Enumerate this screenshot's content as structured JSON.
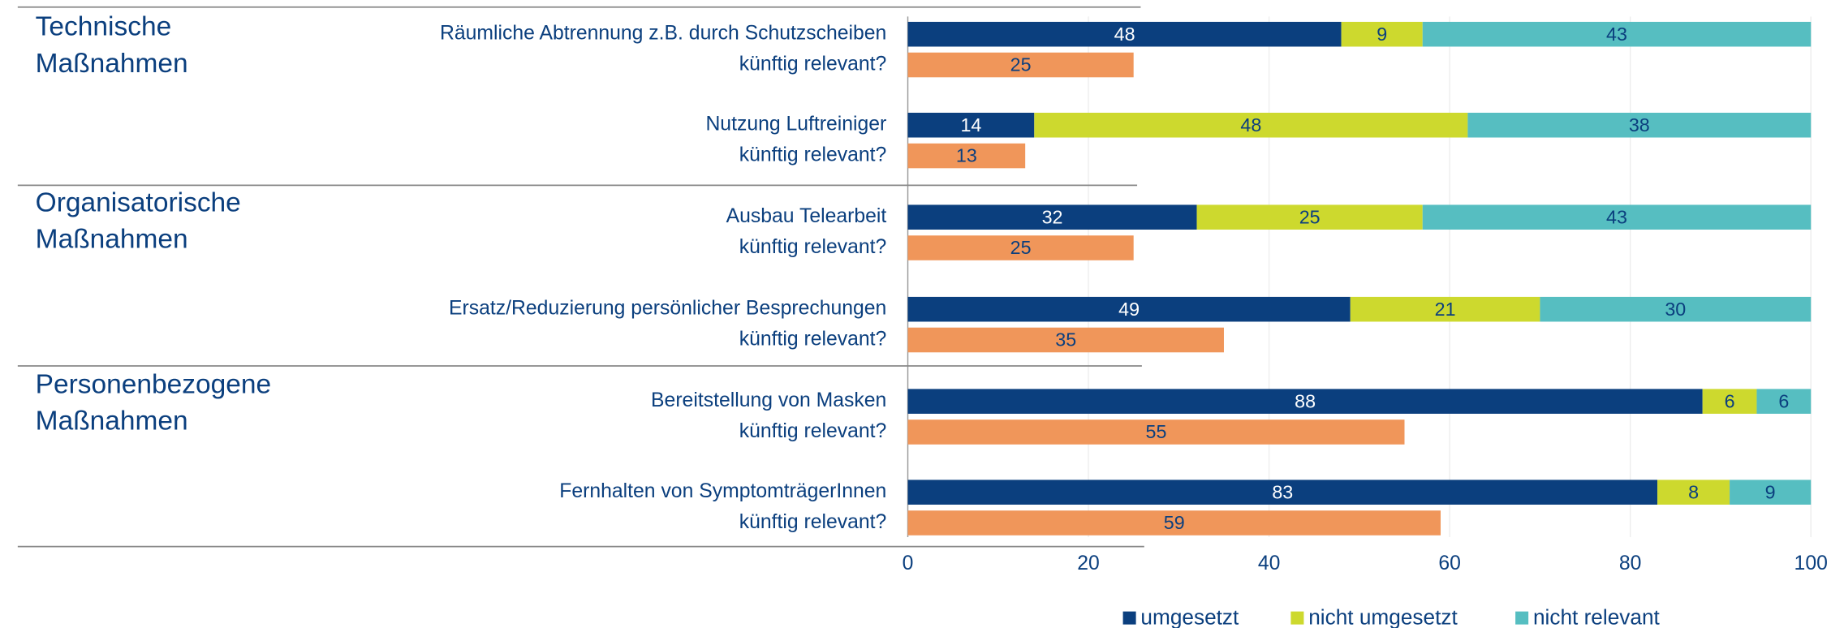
{
  "chart_data": {
    "type": "stacked-bar-horizontal",
    "groups": [
      [
        "Technische",
        "Maßnahmen"
      ],
      [
        "Organisatorische",
        "Maßnahmen"
      ],
      [
        "Personenbezogene",
        "Maßnahmen"
      ]
    ],
    "categories": [
      "Räumliche Abtrennung z.B. durch Schutzscheiben",
      "Nutzung Luftreiniger",
      "Ausbau Telearbeit",
      "Ersatz/Reduzierung persönlicher Besprechungen",
      "Bereitstellung von Masken",
      "Fernhalten von SymptomträgerInnen"
    ],
    "series": [
      {
        "name": "umgesetzt",
        "color": "#0b3f7e",
        "values": [
          48,
          14,
          32,
          49,
          88,
          83
        ]
      },
      {
        "name": "nicht umgesetzt",
        "color": "#cdd92e",
        "values": [
          9,
          48,
          25,
          21,
          6,
          8
        ]
      },
      {
        "name": "nicht relevant",
        "color": "#56bec1",
        "values": [
          43,
          38,
          43,
          30,
          6,
          9
        ]
      }
    ],
    "relevant": {
      "labels": [
        "künftig relevant?",
        "künftig relevant?",
        "künftig relevant?",
        "künftig relevant?",
        "künftig relevant?",
        "künftig relevant?"
      ],
      "color": "#f0965a",
      "values": [
        25,
        13,
        25,
        35,
        55,
        59
      ]
    },
    "xlim": [
      0,
      100
    ],
    "xticks": [
      0,
      20,
      40,
      60,
      80,
      100
    ],
    "grid": true
  }
}
